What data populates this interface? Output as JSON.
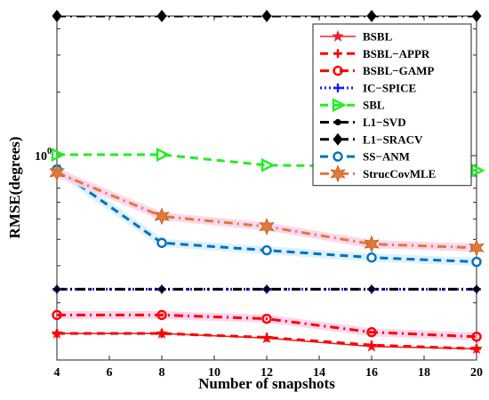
{
  "chart_data": {
    "type": "line",
    "xlabel": "Number of snapshots",
    "ylabel": "RMSE(degrees)",
    "x": [
      4,
      8,
      12,
      16,
      20
    ],
    "x_ticks": [
      "4",
      "6",
      "8",
      "10",
      "12",
      "14",
      "16",
      "18",
      "20"
    ],
    "xlim": [
      4,
      20
    ],
    "y_scale": "log",
    "ylim": [
      0.107,
      4.6
    ],
    "y_tick_label": {
      "base": "10",
      "exp": "0"
    },
    "grid": false,
    "legend_position": "top-right",
    "series": [
      {
        "name": "BSBL",
        "values": [
          0.143,
          0.143,
          0.136,
          0.124,
          0.121
        ],
        "color": "#e8262a",
        "dash": "solid",
        "marker": "star"
      },
      {
        "name": "BSBL−APPR",
        "values": [
          0.143,
          0.143,
          0.137,
          0.126,
          0.121
        ],
        "color": "#ff0000",
        "dash": "dash",
        "marker": "plus"
      },
      {
        "name": "BSBL−GAMP",
        "values": [
          0.175,
          0.175,
          0.168,
          0.145,
          0.138
        ],
        "color": "#ff0000",
        "dash": "dashdot",
        "marker": "circle"
      },
      {
        "name": "IC−SPICE",
        "values": [
          0.232,
          0.232,
          0.232,
          0.232,
          0.232
        ],
        "color": "#1a1aff",
        "dash": "dot",
        "marker": "plus"
      },
      {
        "name": "SBL",
        "values": [
          1.01,
          1.01,
          0.9,
          0.89,
          0.85
        ],
        "color": "#22ee22",
        "dash": "dash",
        "marker": "triangle-right"
      },
      {
        "name": "L1−SVD",
        "values": [
          0.232,
          0.232,
          0.232,
          0.232,
          0.232
        ],
        "color": "#000000",
        "dash": "dashdot",
        "marker": "dot"
      },
      {
        "name": "L1−SRACV",
        "values": [
          4.6,
          4.6,
          4.6,
          4.6,
          4.6
        ],
        "color": "#000000",
        "dash": "dashdot",
        "marker": "diamond"
      },
      {
        "name": "SS−ANM",
        "values": [
          0.86,
          0.385,
          0.355,
          0.328,
          0.313
        ],
        "color": "#0072bd",
        "dash": "dash",
        "marker": "circle-open"
      },
      {
        "name": "StrucCovMLE",
        "values": [
          0.83,
          0.515,
          0.46,
          0.38,
          0.365
        ],
        "color": "#e07a3a",
        "dash": "dashdot",
        "marker": "hexagram"
      }
    ]
  }
}
